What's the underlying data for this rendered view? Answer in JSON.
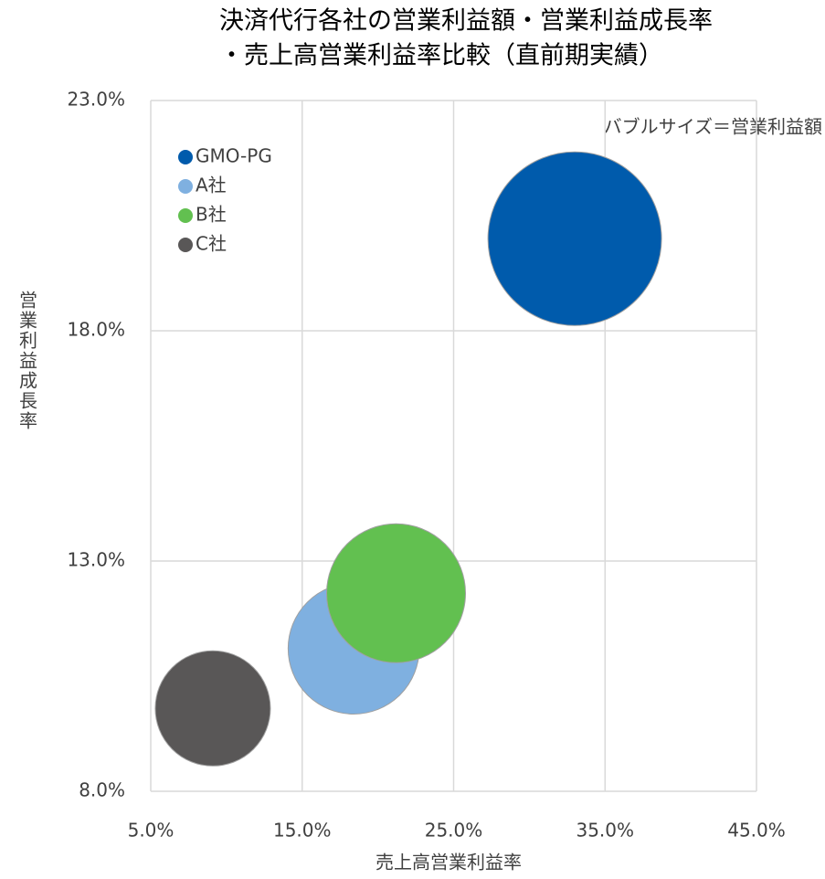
{
  "chart_data": {
    "type": "bubble",
    "title": [
      "決済代行各社の営業利益額・営業利益成長率",
      "・売上高営業利益率比較（直前期実績）"
    ],
    "annotation": "バブルサイズ＝営業利益額",
    "x_label": "売上高営業利益率",
    "y_label": "営業利益成長率",
    "xlim": [
      5,
      45
    ],
    "xticks": [
      {
        "value": 5,
        "label": "5.0%"
      },
      {
        "value": 15,
        "label": "15.0%"
      },
      {
        "value": 25,
        "label": "25.0%"
      },
      {
        "value": 35,
        "label": "35.0%"
      },
      {
        "value": 45,
        "label": "45.0%"
      }
    ],
    "ylim": [
      8,
      23
    ],
    "yticks": [
      {
        "value": 8,
        "label": "8.0%"
      },
      {
        "value": 13,
        "label": "13.0%"
      },
      {
        "value": 18,
        "label": "18.0%"
      },
      {
        "value": 23,
        "label": "23.0%"
      }
    ],
    "grid": true,
    "legend": "upper left",
    "series": [
      {
        "name": "GMO-PG",
        "color": "#005bac",
        "x": [
          33.0
        ],
        "values": [
          20.0
        ],
        "sizes": [
          100
        ]
      },
      {
        "name": "A社",
        "color": "#7fb0e0",
        "x": [
          18.4
        ],
        "values": [
          11.1
        ],
        "sizes": [
          57
        ]
      },
      {
        "name": "B社",
        "color": "#62c050",
        "x": [
          21.2
        ],
        "values": [
          12.3
        ],
        "sizes": [
          64
        ]
      },
      {
        "name": "C社",
        "color": "#595757",
        "x": [
          9.1
        ],
        "values": [
          9.8
        ],
        "sizes": [
          44
        ]
      }
    ]
  }
}
